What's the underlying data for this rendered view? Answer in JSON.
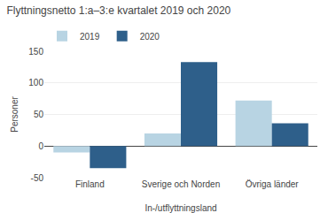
{
  "chart_data": {
    "type": "bar",
    "title": "Flyttningsnetto 1:a–3:e kvartalet 2019 och 2020",
    "ylabel": "Personer",
    "xlabel": "In-/utflyttningsland",
    "categories": [
      "Finland",
      "Sverige och Norden",
      "Övriga länder"
    ],
    "series": [
      {
        "name": "2019",
        "color": "#b8d4e3",
        "values": [
          -10,
          20,
          72
        ]
      },
      {
        "name": "2020",
        "color": "#2e5f8a",
        "values": [
          -35,
          133,
          36
        ]
      }
    ],
    "ylim": [
      -50,
      150
    ],
    "yticks": [
      -50,
      0,
      50,
      100,
      150
    ],
    "grid": true,
    "legend": "upper left"
  }
}
